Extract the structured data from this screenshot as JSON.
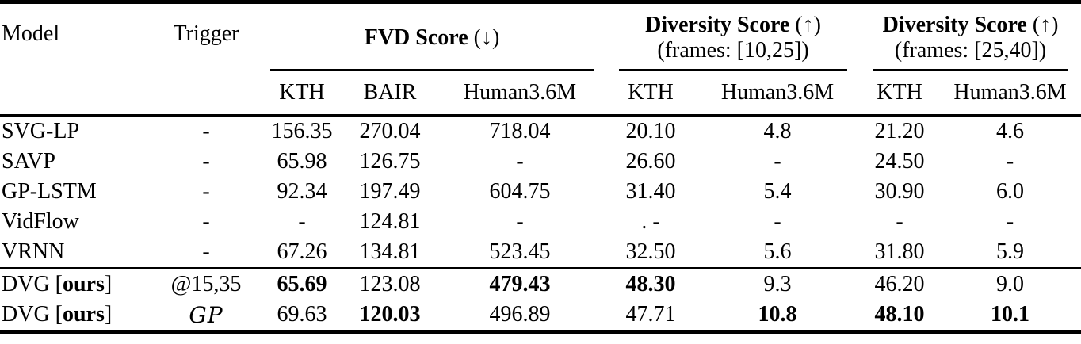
{
  "table": {
    "header": {
      "model": "Model",
      "trigger": "Trigger",
      "groups": [
        {
          "title": "FVD Score",
          "arrow": "(↓)",
          "subtitle": "",
          "columns": [
            "KTH",
            "BAIR",
            "Human3.6M"
          ]
        },
        {
          "title": "Diversity Score",
          "arrow": "(↑)",
          "subtitle": "(frames: [10,25])",
          "columns": [
            "KTH",
            "Human3.6M"
          ]
        },
        {
          "title": "Diversity Score",
          "arrow": "(↑)",
          "subtitle": "(frames: [25,40])",
          "columns": [
            "KTH",
            "Human3.6M"
          ]
        }
      ]
    },
    "baseline_rows": [
      {
        "model_prefix": "SVG-LP",
        "model_bold": "",
        "model_suffix": "",
        "trigger": "-",
        "trigger_script": false,
        "values": [
          {
            "text": "156.35",
            "bold": false
          },
          {
            "text": "270.04",
            "bold": false
          },
          {
            "text": "718.04",
            "bold": false
          },
          {
            "text": "20.10",
            "bold": false
          },
          {
            "text": "4.8",
            "bold": false
          },
          {
            "text": "21.20",
            "bold": false
          },
          {
            "text": "4.6",
            "bold": false
          }
        ]
      },
      {
        "model_prefix": "SAVP",
        "model_bold": "",
        "model_suffix": "",
        "trigger": "-",
        "trigger_script": false,
        "values": [
          {
            "text": "65.98",
            "bold": false
          },
          {
            "text": "126.75",
            "bold": false
          },
          {
            "text": "-",
            "bold": false
          },
          {
            "text": "26.60",
            "bold": false
          },
          {
            "text": "-",
            "bold": false
          },
          {
            "text": "24.50",
            "bold": false
          },
          {
            "text": "-",
            "bold": false
          }
        ]
      },
      {
        "model_prefix": "GP-LSTM",
        "model_bold": "",
        "model_suffix": "",
        "trigger": "-",
        "trigger_script": false,
        "values": [
          {
            "text": "92.34",
            "bold": false
          },
          {
            "text": "197.49",
            "bold": false
          },
          {
            "text": "604.75",
            "bold": false
          },
          {
            "text": "31.40",
            "bold": false
          },
          {
            "text": "5.4",
            "bold": false
          },
          {
            "text": "30.90",
            "bold": false
          },
          {
            "text": "6.0",
            "bold": false
          }
        ]
      },
      {
        "model_prefix": "VidFlow",
        "model_bold": "",
        "model_suffix": "",
        "trigger": "-",
        "trigger_script": false,
        "values": [
          {
            "text": "-",
            "bold": false
          },
          {
            "text": "124.81",
            "bold": false
          },
          {
            "text": "-",
            "bold": false
          },
          {
            "text": ". -",
            "bold": false
          },
          {
            "text": "-",
            "bold": false
          },
          {
            "text": "-",
            "bold": false
          },
          {
            "text": "-",
            "bold": false
          }
        ]
      },
      {
        "model_prefix": "VRNN",
        "model_bold": "",
        "model_suffix": "",
        "trigger": "-",
        "trigger_script": false,
        "values": [
          {
            "text": "67.26",
            "bold": false
          },
          {
            "text": "134.81",
            "bold": false
          },
          {
            "text": "523.45",
            "bold": false
          },
          {
            "text": "32.50",
            "bold": false
          },
          {
            "text": "5.6",
            "bold": false
          },
          {
            "text": "31.80",
            "bold": false
          },
          {
            "text": "5.9",
            "bold": false
          }
        ]
      }
    ],
    "ours_rows": [
      {
        "model_prefix": "DVG [",
        "model_bold": "ours",
        "model_suffix": "]",
        "trigger": "@15,35",
        "trigger_script": false,
        "values": [
          {
            "text": "65.69",
            "bold": true
          },
          {
            "text": "123.08",
            "bold": false
          },
          {
            "text": "479.43",
            "bold": true
          },
          {
            "text": "48.30",
            "bold": true
          },
          {
            "text": "9.3",
            "bold": false
          },
          {
            "text": "46.20",
            "bold": false
          },
          {
            "text": "9.0",
            "bold": false
          }
        ]
      },
      {
        "model_prefix": "DVG [",
        "model_bold": "ours",
        "model_suffix": "]",
        "trigger": "GP",
        "trigger_script": true,
        "values": [
          {
            "text": "69.63",
            "bold": false
          },
          {
            "text": "120.03",
            "bold": true
          },
          {
            "text": "496.89",
            "bold": false
          },
          {
            "text": "47.71",
            "bold": false
          },
          {
            "text": "10.8",
            "bold": true
          },
          {
            "text": "48.10",
            "bold": true
          },
          {
            "text": "10.1",
            "bold": true
          }
        ]
      }
    ]
  }
}
